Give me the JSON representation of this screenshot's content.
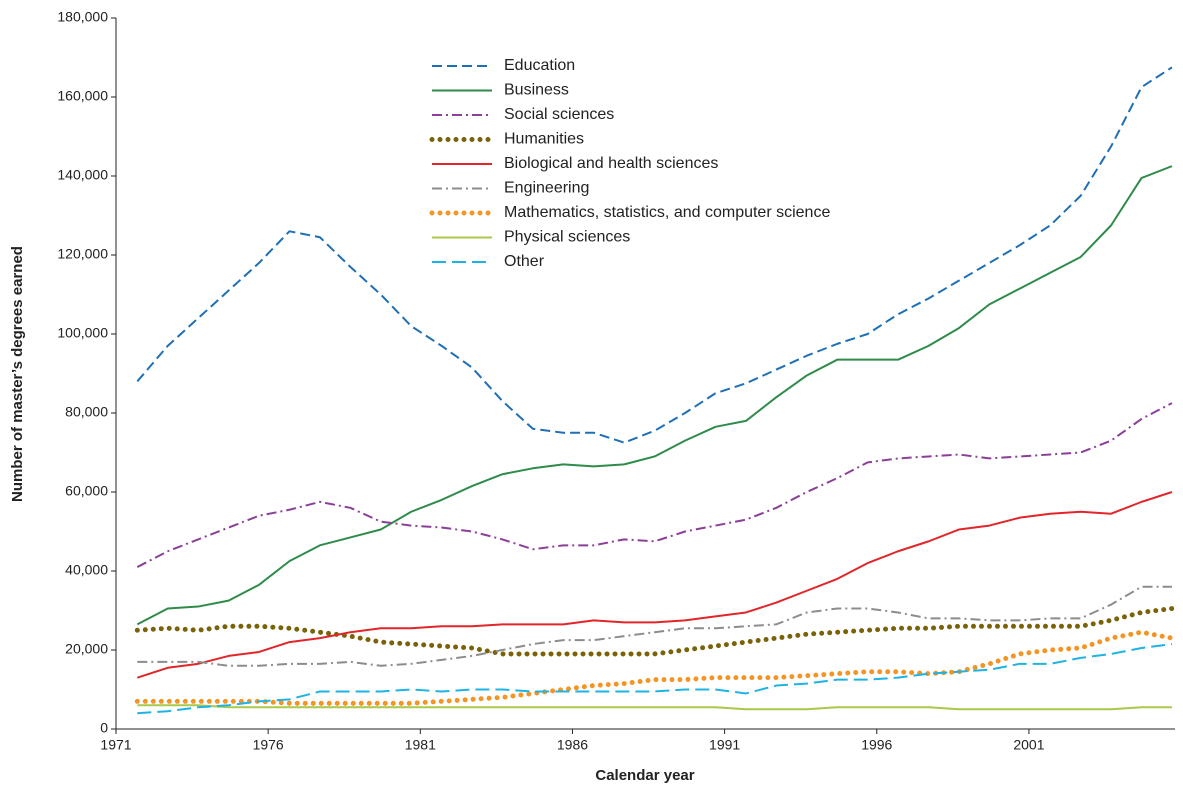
{
  "chart_data": {
    "type": "line",
    "xlabel": "Calendar year",
    "ylabel": "Number of master’s degrees earned",
    "x": [
      1971.7,
      1972.7,
      1973.7,
      1974.7,
      1975.7,
      1976.7,
      1977.7,
      1978.7,
      1979.7,
      1980.7,
      1981.7,
      1982.7,
      1983.7,
      1984.7,
      1985.7,
      1986.7,
      1987.7,
      1988.7,
      1989.7,
      1990.7,
      1991.7,
      1992.7,
      1993.7,
      1994.7,
      1995.7,
      1996.7,
      1997.7,
      1998.7,
      1999.7,
      2000.7,
      2001.7,
      2002.7,
      2003.7,
      2004.7,
      2005.7
    ],
    "xlim": [
      1971,
      2005.8
    ],
    "xticks": [
      1971,
      1976,
      1981,
      1986,
      1991,
      1996,
      2001
    ],
    "ylim": [
      0,
      180000
    ],
    "yticks": [
      0,
      {
        "value": 20000,
        "label": "20,000"
      },
      {
        "value": 40000,
        "label": "40,000"
      },
      {
        "value": 60000,
        "label": "60,000"
      },
      {
        "value": 80000,
        "label": "80,000"
      },
      {
        "value": 100000,
        "label": "100,000"
      },
      {
        "value": 120000,
        "label": "120,000"
      },
      {
        "value": 140000,
        "label": "140,000"
      },
      {
        "value": 160000,
        "label": "160,000"
      },
      {
        "value": 180000,
        "label": "180,000"
      }
    ],
    "legend": "upper center",
    "series": [
      {
        "name": "Education",
        "color": "#1f6fb4",
        "style": "dashed",
        "values": [
          88000,
          97000,
          104000,
          111000,
          118000,
          126000,
          124500,
          117000,
          110000,
          102000,
          97000,
          91500,
          83000,
          76000,
          75000,
          75000,
          72500,
          75500,
          80000,
          85000,
          87500,
          91000,
          94500,
          97500,
          100000,
          105000,
          109000,
          113500,
          118000,
          122500,
          127500,
          135000,
          147500,
          162500,
          167500
        ]
      },
      {
        "name": "Business",
        "color": "#2e8b4a",
        "style": "solid",
        "values": [
          26500,
          30500,
          31000,
          32500,
          36500,
          42500,
          46500,
          48500,
          50500,
          55000,
          58000,
          61500,
          64500,
          66000,
          67000,
          66500,
          67000,
          69000,
          73000,
          76500,
          78000,
          84000,
          89500,
          93500,
          93500,
          93500,
          97000,
          101500,
          107500,
          111500,
          115500,
          119500,
          127500,
          139500,
          142500
        ]
      },
      {
        "name": "Social sciences",
        "color": "#8b3f98",
        "style": "dashdot",
        "values": [
          41000,
          45000,
          48000,
          51000,
          54000,
          55500,
          57500,
          56000,
          52500,
          51500,
          51000,
          50000,
          48000,
          45500,
          46500,
          46500,
          48000,
          47500,
          50000,
          51500,
          53000,
          56000,
          60000,
          63500,
          67500,
          68500,
          69000,
          69500,
          68500,
          69000,
          69500,
          70000,
          73000,
          78500,
          82500
        ]
      },
      {
        "name": "Humanities",
        "color": "#7a6208",
        "style": "dotted",
        "values": [
          25000,
          25500,
          25000,
          26000,
          26000,
          25500,
          24500,
          23500,
          22000,
          21500,
          21000,
          20500,
          19000,
          19000,
          19000,
          19000,
          19000,
          19000,
          20000,
          21000,
          22000,
          23000,
          24000,
          24500,
          25000,
          25500,
          25500,
          26000,
          26000,
          26000,
          26000,
          26000,
          27500,
          29500,
          30500
        ]
      },
      {
        "name": "Biological and health sciences",
        "color": "#e0262a",
        "style": "solid",
        "values": [
          13000,
          15500,
          16500,
          18500,
          19500,
          22000,
          23000,
          24500,
          25500,
          25500,
          26000,
          26000,
          26500,
          26500,
          26500,
          27500,
          27000,
          27000,
          27500,
          28500,
          29500,
          32000,
          35000,
          38000,
          42000,
          45000,
          47500,
          50500,
          51500,
          53500,
          54500,
          55000,
          54500,
          57500,
          60000
        ]
      },
      {
        "name": "Engineering",
        "color": "#8c8c8c",
        "style": "dashdot",
        "values": [
          17000,
          17000,
          17000,
          16000,
          16000,
          16500,
          16500,
          17000,
          16000,
          16500,
          17500,
          18500,
          20000,
          21500,
          22500,
          22500,
          23500,
          24500,
          25500,
          25500,
          26000,
          26500,
          29500,
          30500,
          30500,
          29500,
          28000,
          28000,
          27500,
          27500,
          28000,
          28000,
          31500,
          36000,
          36000
        ]
      },
      {
        "name": "Mathematics, statistics, and computer science",
        "color": "#f39425",
        "style": "dotted",
        "values": [
          7000,
          7000,
          7000,
          7000,
          7000,
          6500,
          6500,
          6500,
          6500,
          6500,
          7000,
          7500,
          8000,
          9000,
          10000,
          11000,
          11500,
          12500,
          12500,
          13000,
          13000,
          13000,
          13500,
          14000,
          14500,
          14500,
          14000,
          14500,
          16500,
          19000,
          20000,
          20500,
          23000,
          24500,
          23000
        ]
      },
      {
        "name": "Physical sciences",
        "color": "#a8c94a",
        "style": "solid",
        "values": [
          6000,
          6000,
          6000,
          5500,
          5500,
          5500,
          5500,
          5500,
          5500,
          5500,
          5500,
          5500,
          5500,
          5500,
          5500,
          5500,
          5500,
          5500,
          5500,
          5500,
          5000,
          5000,
          5000,
          5500,
          5500,
          5500,
          5500,
          5000,
          5000,
          5000,
          5000,
          5000,
          5000,
          5500,
          5500
        ]
      },
      {
        "name": "Other",
        "color": "#1fb3e3",
        "style": "longdash",
        "values": [
          4000,
          4500,
          5500,
          6000,
          7000,
          7500,
          9500,
          9500,
          9500,
          10000,
          9500,
          10000,
          10000,
          9500,
          9500,
          9500,
          9500,
          9500,
          10000,
          10000,
          9000,
          11000,
          11500,
          12500,
          12500,
          13000,
          14000,
          14500,
          15000,
          16500,
          16500,
          18000,
          19000,
          20500,
          21500
        ]
      }
    ]
  }
}
